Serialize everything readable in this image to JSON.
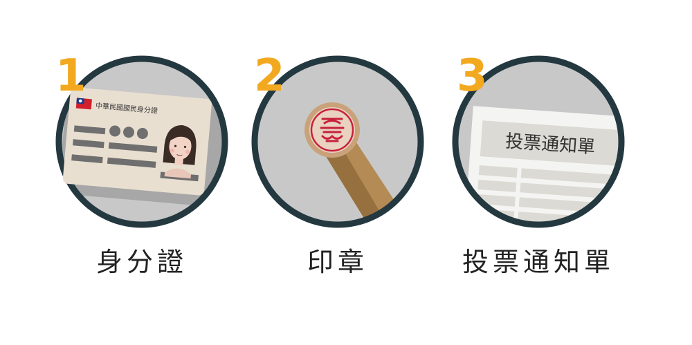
{
  "steps": [
    {
      "number": "1",
      "label": "身分證",
      "card_title": "中華民國國民身分證",
      "icon": "id-card-icon"
    },
    {
      "number": "2",
      "label": "印章",
      "icon": "seal-stamp-icon"
    },
    {
      "number": "3",
      "label": "投票通知單",
      "slip_title": "投票通知單",
      "icon": "voting-notice-icon"
    }
  ],
  "colors": {
    "number": "#F2A91F",
    "circle_border": "#243840",
    "circle_fill": "#C8C8C8",
    "flag_red": "#D1202C",
    "flag_blue": "#1E3B8C",
    "seal_ink": "#C8203A"
  }
}
